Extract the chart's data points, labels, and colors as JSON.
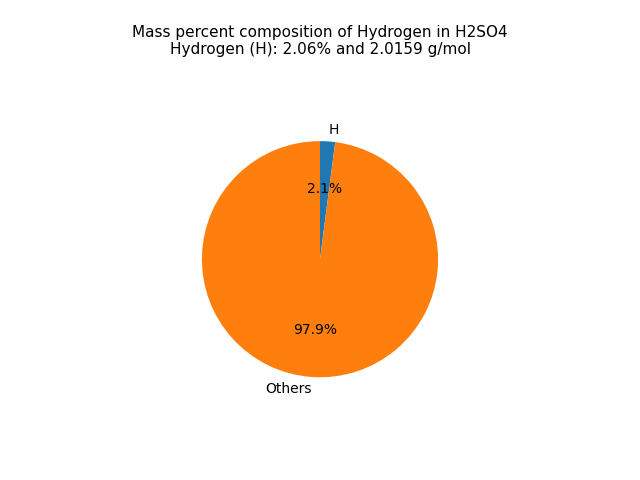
{
  "title_line1": "Mass percent composition of Hydrogen in H2SO4",
  "title_line2": "Hydrogen (H): 2.06% and 2.0159 g/mol",
  "labels": [
    "H",
    "Others"
  ],
  "values": [
    2.06,
    97.94
  ],
  "colors": [
    "#1f77b4",
    "#ff7f0e"
  ],
  "startangle": 90,
  "title_fontsize": 11,
  "label_fontsize": 10,
  "pct_fontsize": 10
}
